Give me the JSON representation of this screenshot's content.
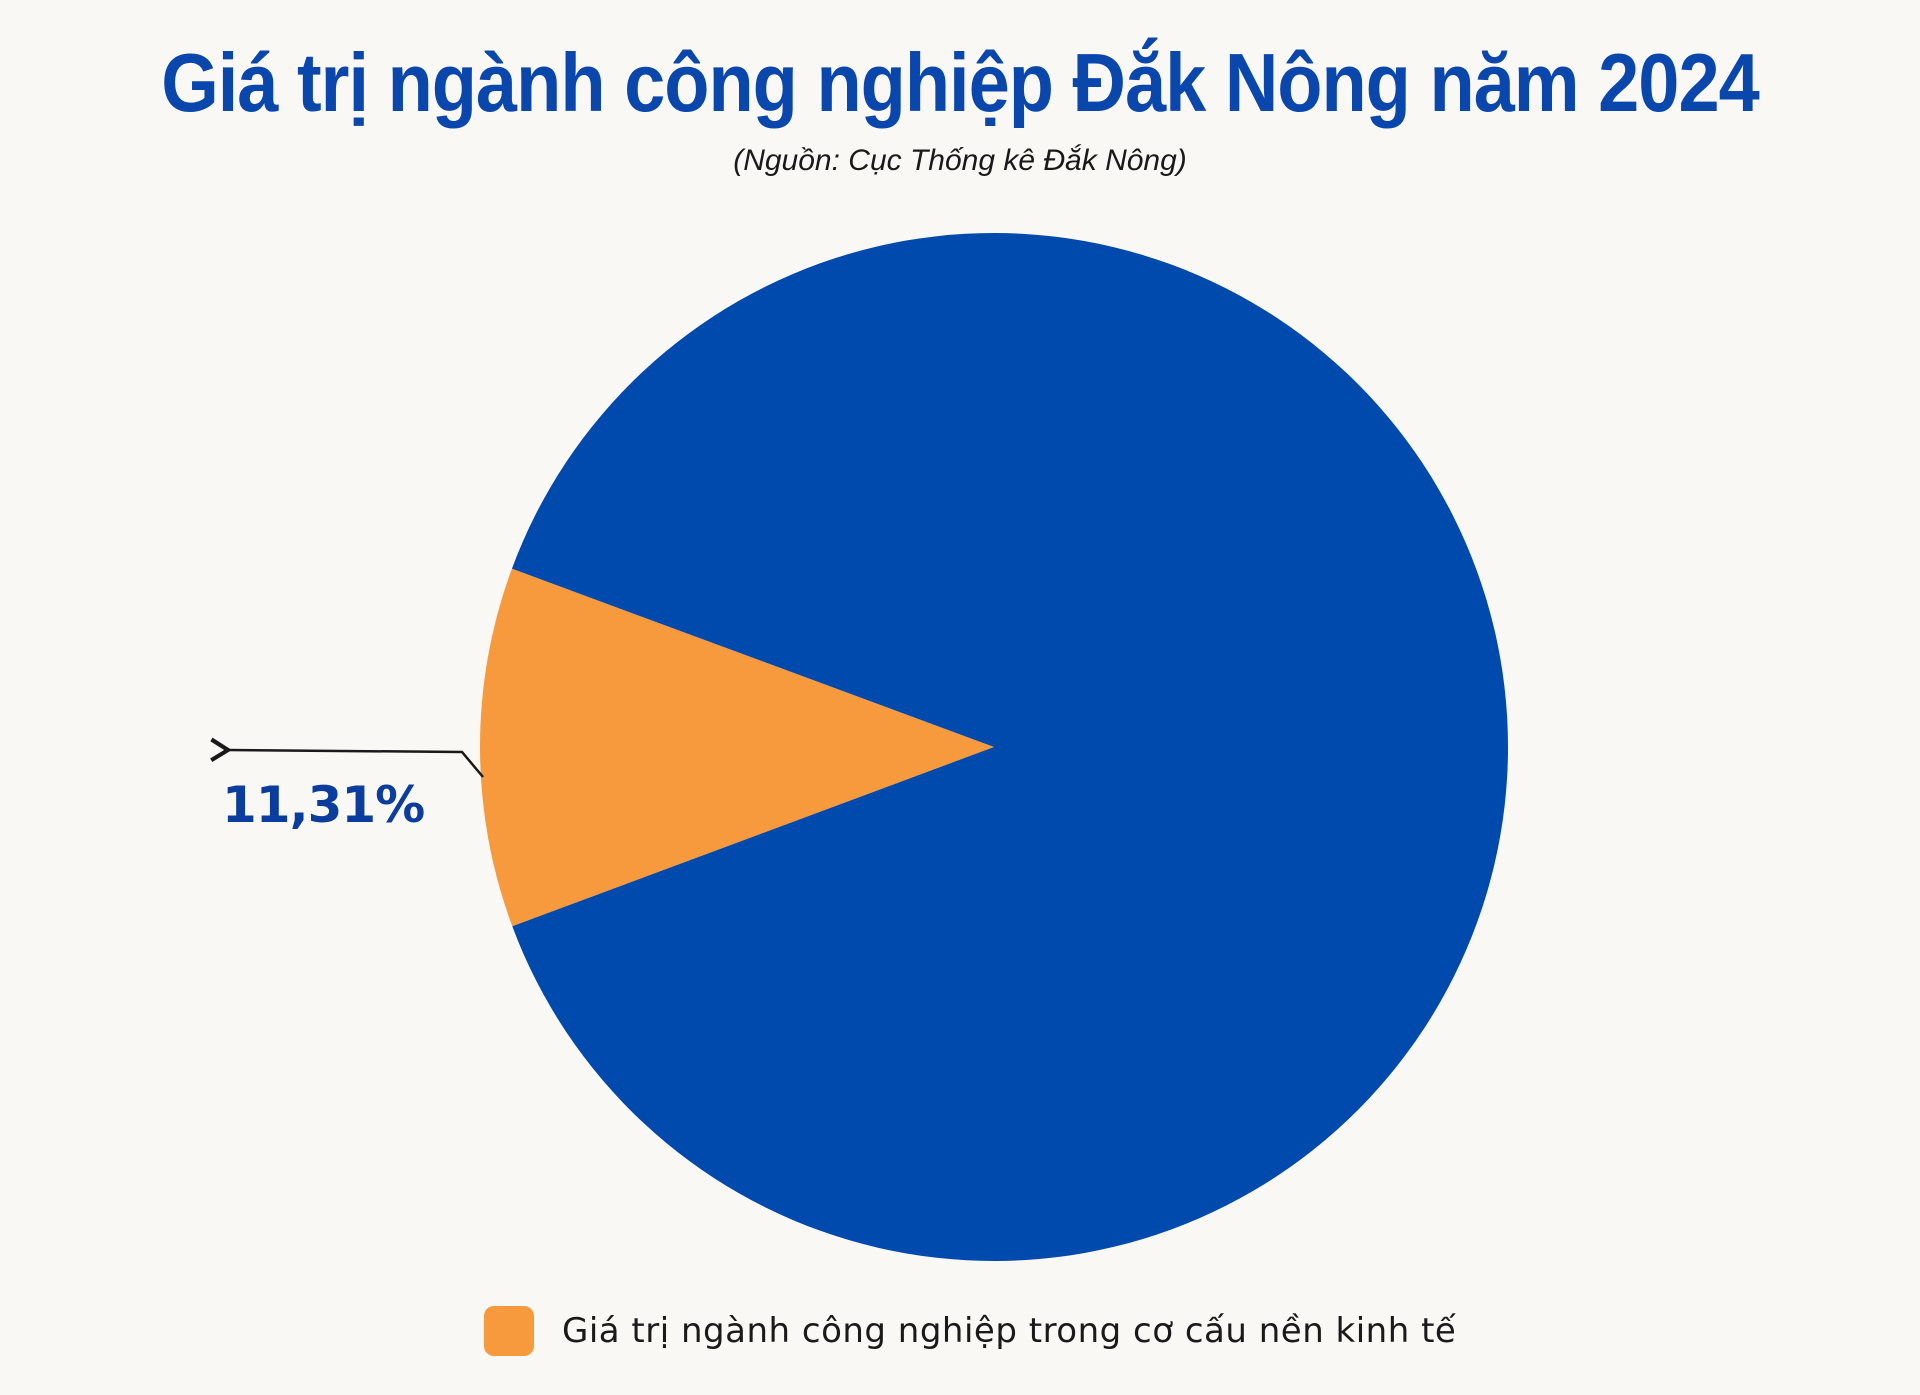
{
  "title": "Giá trị ngành công nghiệp Đắk Nông năm 2024",
  "subtitle": "(Nguồn: Cục Thống kê Đắk Nông)",
  "colors": {
    "title": "#0a47ad",
    "industry": "#f79a3e",
    "rest": "#0049ad",
    "annotation_text": "#0a3d9e",
    "background": "#faf8f4"
  },
  "chart_data": {
    "type": "pie",
    "title": "Giá trị ngành công nghiệp Đắk Nông năm 2024",
    "subtitle": "(Nguồn: Cục Thống kê Đắk Nông)",
    "slices": [
      {
        "label": "Giá trị ngành công nghiệp trong cơ cấu nền kinh tế",
        "value": 11.31,
        "value_label": "11,31%",
        "color": "#f79a3e"
      },
      {
        "label": "",
        "value": 88.69,
        "color": "#0049ad"
      }
    ],
    "legend": {
      "position": "bottom",
      "entries": [
        "Giá trị ngành công nghiệp trong cơ cấu nền kinh tế"
      ]
    }
  }
}
